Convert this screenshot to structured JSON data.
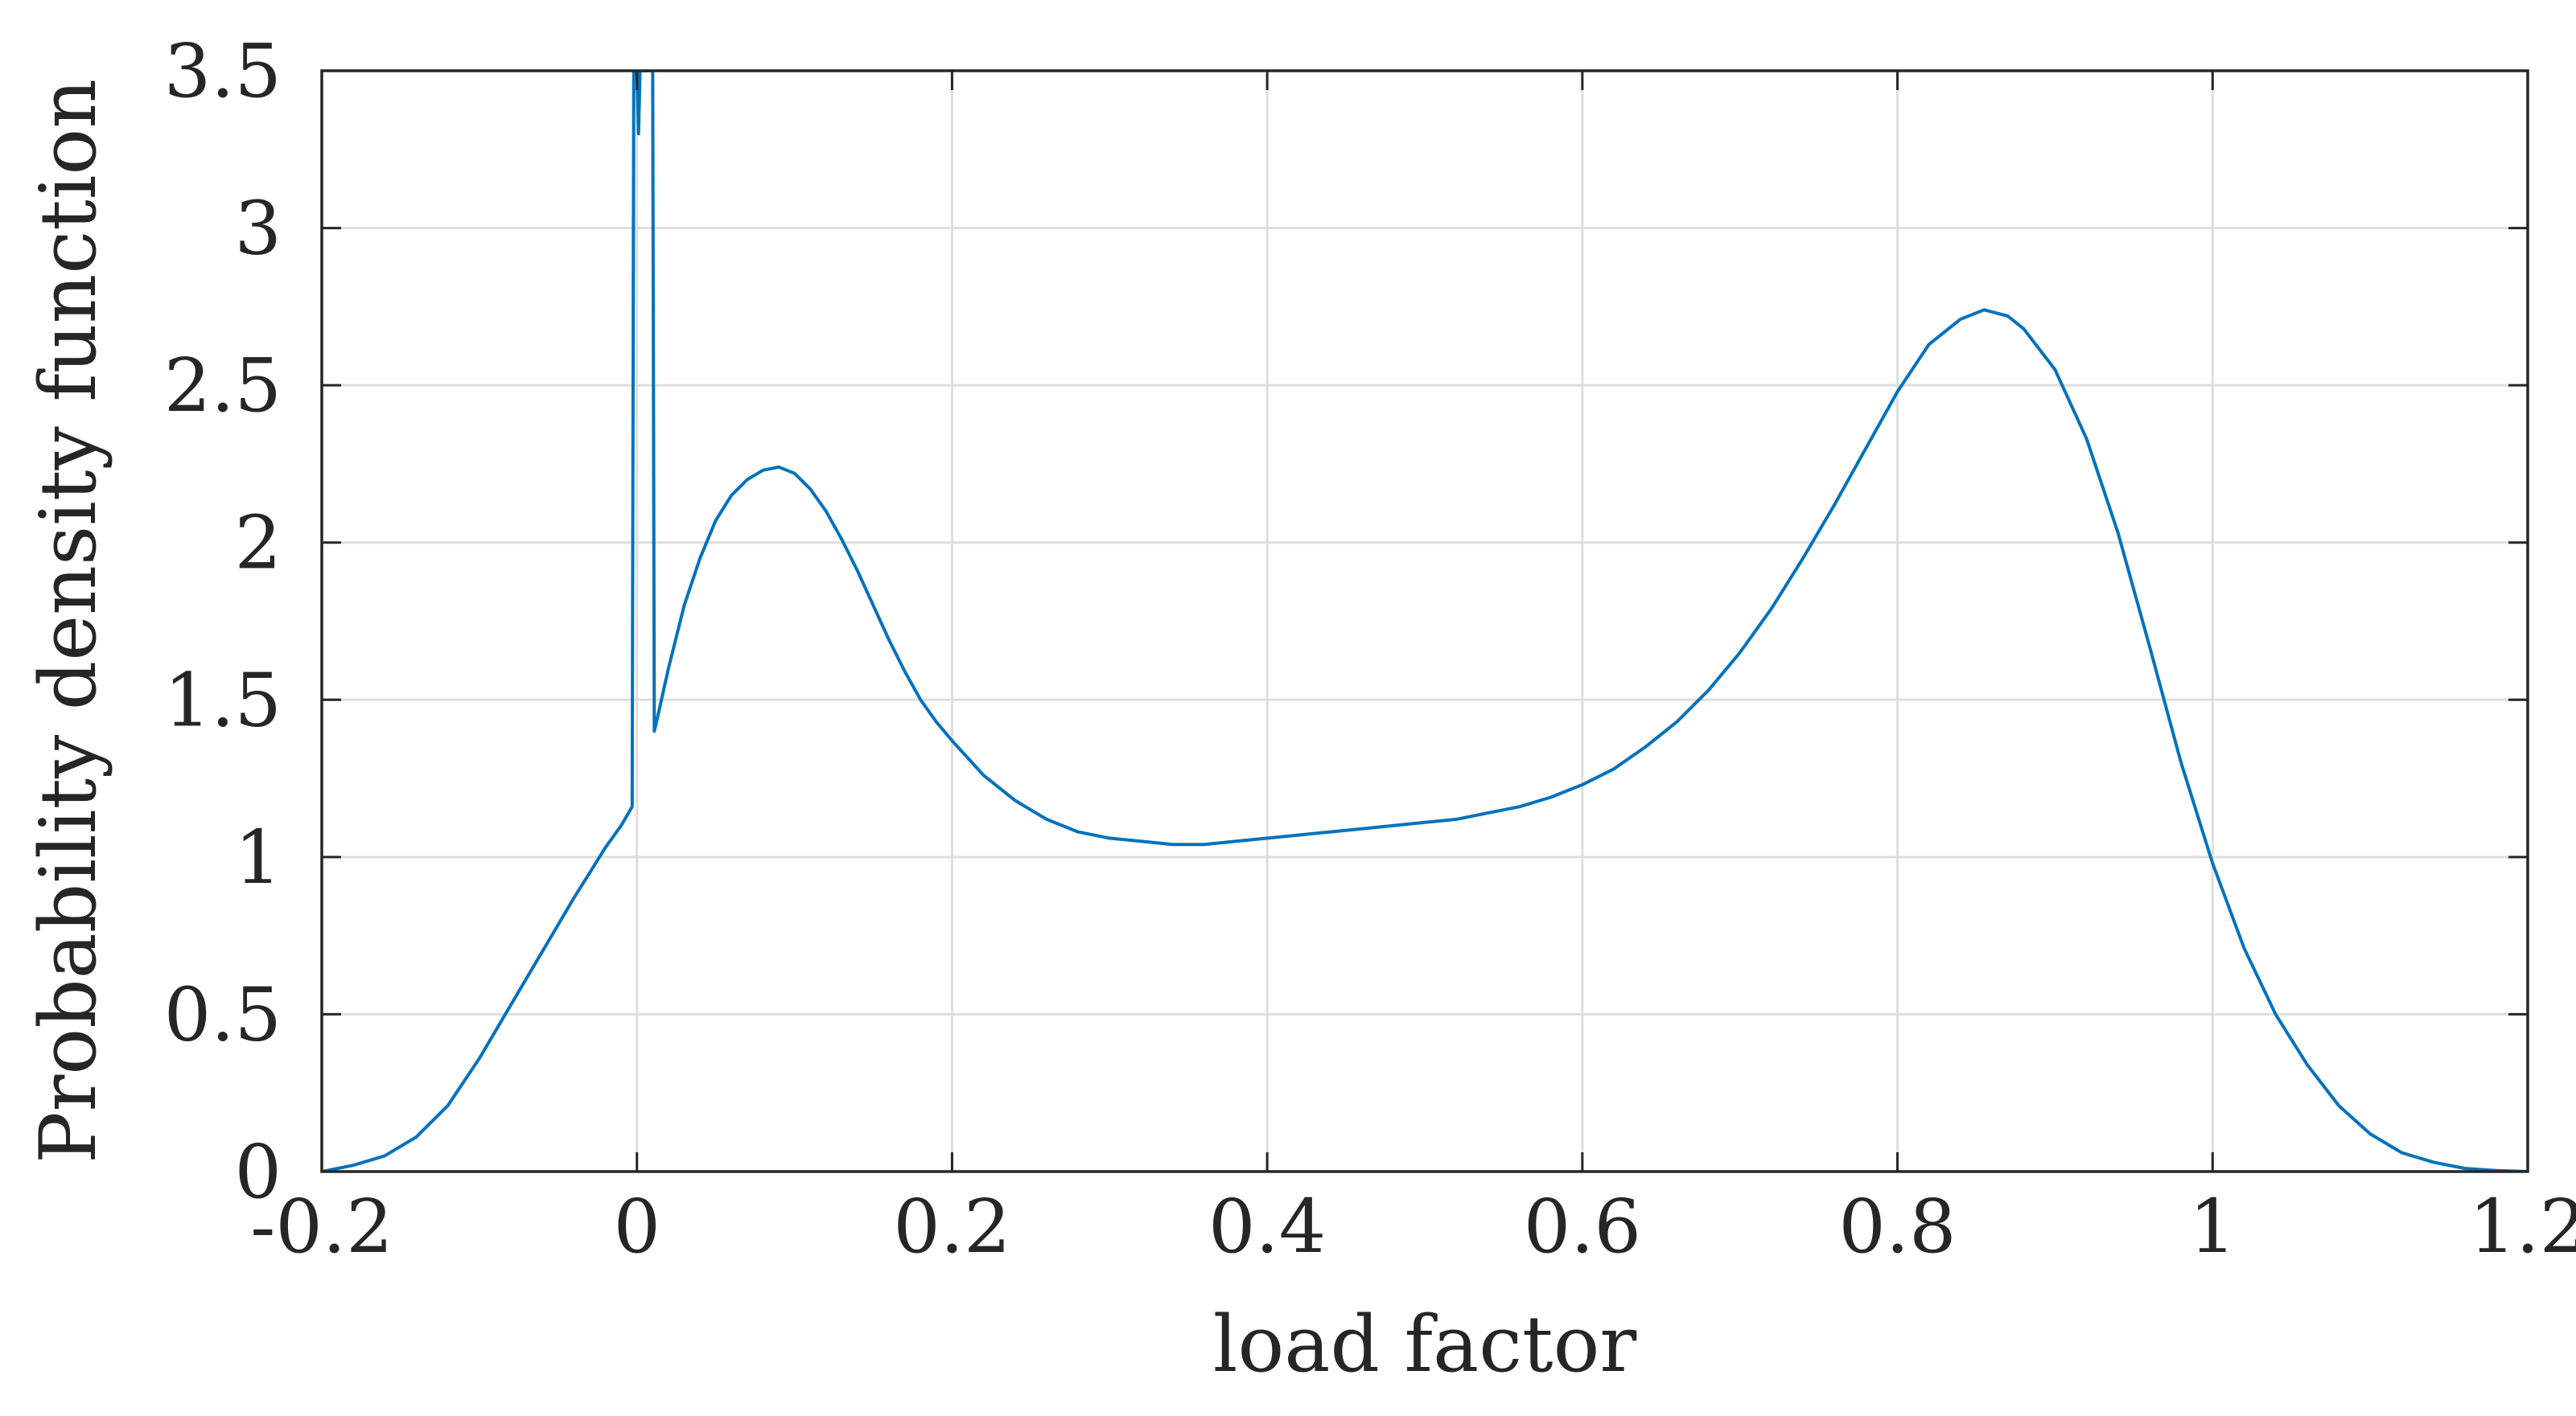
{
  "chart_data": {
    "type": "line",
    "title": "",
    "xlabel": "load factor",
    "ylabel": "Probability density function",
    "xlim": [
      -0.2,
      1.2
    ],
    "ylim": [
      0,
      3.5
    ],
    "grid": true,
    "legend": "none",
    "x_ticks": [
      -0.2,
      0,
      0.2,
      0.4,
      0.6,
      0.8,
      1,
      1.2
    ],
    "x_tick_labels": [
      "-0.2",
      "0",
      "0.2",
      "0.4",
      "0.6",
      "0.8",
      "1",
      "1.2"
    ],
    "y_ticks": [
      0,
      0.5,
      1,
      1.5,
      2,
      2.5,
      3,
      3.5
    ],
    "y_tick_labels": [
      "0",
      "0.5",
      "1",
      "1.5",
      "2",
      "2.5",
      "3",
      "3.5"
    ],
    "colors": {
      "series": "#0072bd",
      "axes": "#262626",
      "grid": "#dedede"
    },
    "series": [
      {
        "x": [
          -0.2,
          -0.18,
          -0.16,
          -0.14,
          -0.12,
          -0.1,
          -0.08,
          -0.06,
          -0.04,
          -0.03,
          -0.02,
          -0.01,
          -0.003,
          -0.002,
          -0.001,
          0.0,
          0.001,
          0.002,
          0.003,
          0.005,
          0.007,
          0.009,
          0.01,
          0.011,
          0.012,
          0.02,
          0.03,
          0.04,
          0.05,
          0.06,
          0.07,
          0.08,
          0.09,
          0.1,
          0.11,
          0.12,
          0.13,
          0.14,
          0.15,
          0.16,
          0.17,
          0.18,
          0.19,
          0.2,
          0.22,
          0.24,
          0.26,
          0.28,
          0.3,
          0.32,
          0.34,
          0.36,
          0.38,
          0.4,
          0.42,
          0.44,
          0.46,
          0.48,
          0.5,
          0.52,
          0.54,
          0.56,
          0.58,
          0.6,
          0.62,
          0.64,
          0.66,
          0.68,
          0.7,
          0.72,
          0.74,
          0.76,
          0.78,
          0.8,
          0.82,
          0.84,
          0.855,
          0.87,
          0.88,
          0.9,
          0.92,
          0.94,
          0.96,
          0.98,
          1.0,
          1.02,
          1.04,
          1.06,
          1.08,
          1.1,
          1.12,
          1.14,
          1.16,
          1.18,
          1.2
        ],
        "y": [
          0.0,
          0.02,
          0.05,
          0.11,
          0.21,
          0.36,
          0.53,
          0.7,
          0.87,
          0.95,
          1.03,
          1.1,
          1.16,
          3.5,
          3.5,
          3.5,
          3.3,
          3.5,
          3.5,
          3.5,
          3.5,
          3.5,
          3.5,
          1.4,
          1.42,
          1.6,
          1.8,
          1.95,
          2.07,
          2.15,
          2.2,
          2.23,
          2.24,
          2.22,
          2.17,
          2.1,
          2.01,
          1.91,
          1.8,
          1.69,
          1.59,
          1.5,
          1.43,
          1.37,
          1.26,
          1.18,
          1.12,
          1.08,
          1.06,
          1.05,
          1.04,
          1.04,
          1.05,
          1.06,
          1.07,
          1.08,
          1.09,
          1.1,
          1.11,
          1.12,
          1.14,
          1.16,
          1.19,
          1.23,
          1.28,
          1.35,
          1.43,
          1.53,
          1.65,
          1.79,
          1.95,
          2.12,
          2.3,
          2.48,
          2.63,
          2.71,
          2.74,
          2.72,
          2.68,
          2.55,
          2.33,
          2.03,
          1.67,
          1.3,
          0.98,
          0.71,
          0.5,
          0.34,
          0.21,
          0.12,
          0.06,
          0.03,
          0.01,
          0.003,
          0.0
        ]
      }
    ]
  }
}
